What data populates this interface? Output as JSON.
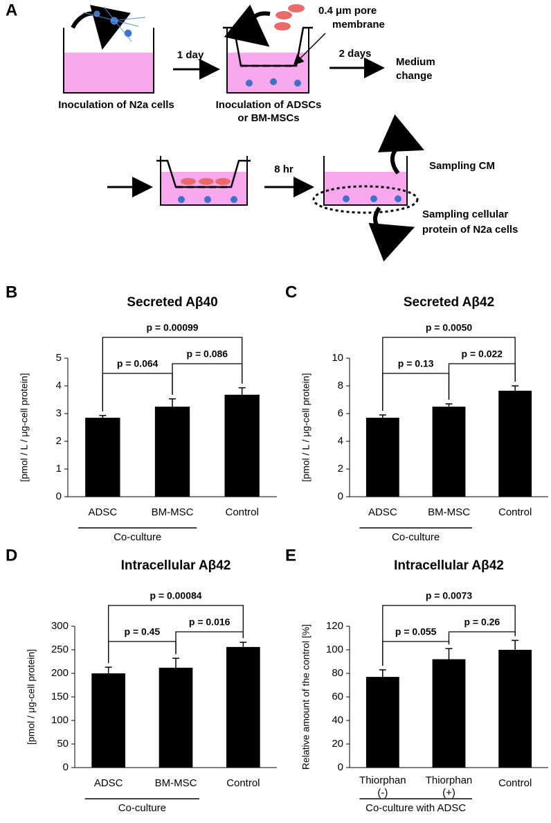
{
  "diagram": {
    "panel": "A",
    "step1": "Inoculation of N2a cells",
    "arrow1": "1 day",
    "step2_line1": "Inoculation of ADSCs",
    "step2_line2": "or BM-MSCs",
    "membrane_line1": "0.4 μm pore",
    "membrane_line2": "membrane",
    "arrow2": "2 days",
    "step3_line1": "Medium",
    "step3_line2": "change",
    "arrow3": "8 hr",
    "sample1": "Sampling CM",
    "sample2_line1": "Sampling cellular",
    "sample2_line2": "protein of N2a cells"
  },
  "chart_data": [
    {
      "type": "bar",
      "panel": "B",
      "title": "Secreted Aβ40",
      "y_label": "[pmol / L / μg-cell protein]",
      "categories": [
        "ADSC",
        "BM-MSC",
        "Control"
      ],
      "values": [
        2.85,
        3.25,
        3.68
      ],
      "errors": [
        0.08,
        0.28,
        0.25
      ],
      "color": "#000000",
      "ylim": [
        0,
        5
      ],
      "yticks": [
        0,
        1,
        2,
        3,
        4,
        5
      ],
      "group_label": "Co-culture",
      "comparisons": [
        "p = 0.064",
        "p = 0.086",
        "p = 0.00099"
      ]
    },
    {
      "type": "bar",
      "panel": "C",
      "title": "Secreted Aβ42",
      "y_label": "[pmol / L / μg-cell protein]",
      "categories": [
        "ADSC",
        "BM-MSC",
        "Control"
      ],
      "values": [
        5.7,
        6.5,
        7.65
      ],
      "errors": [
        0.2,
        0.2,
        0.35
      ],
      "color": "#000000",
      "ylim": [
        0,
        10
      ],
      "yticks": [
        0,
        2,
        4,
        6,
        8,
        10
      ],
      "group_label": "Co-culture",
      "comparisons": [
        "p = 0.13",
        "p = 0.022",
        "p = 0.0050"
      ]
    },
    {
      "type": "bar",
      "panel": "D",
      "title": "Intracellular Aβ42",
      "y_label": "[pmol / μg-cell protein]",
      "categories": [
        "ADSC",
        "BM-MSC",
        "Control"
      ],
      "values": [
        200,
        212,
        256
      ],
      "errors": [
        13,
        20,
        10
      ],
      "color": "#000000",
      "ylim": [
        0,
        300
      ],
      "yticks": [
        0,
        50,
        100,
        150,
        200,
        250,
        300
      ],
      "group_label": "Co-culture",
      "comparisons": [
        "p = 0.45",
        "p = 0.016",
        "p = 0.00084"
      ]
    },
    {
      "type": "bar",
      "panel": "E",
      "title": "Intracellular Aβ42",
      "y_label": "Relative amount of the control [%]",
      "categories": [
        "Thiorphan (-)",
        "Thiorphan (+)",
        "Control"
      ],
      "values": [
        77,
        92,
        100
      ],
      "errors": [
        6,
        9,
        8
      ],
      "color": "#000000",
      "ylim": [
        0,
        120
      ],
      "yticks": [
        0,
        20,
        40,
        60,
        80,
        100,
        120
      ],
      "group_label": "Co-culture with ADSC",
      "comparisons": [
        "p = 0.055",
        "p = 0.26",
        "p = 0.0073"
      ]
    }
  ]
}
